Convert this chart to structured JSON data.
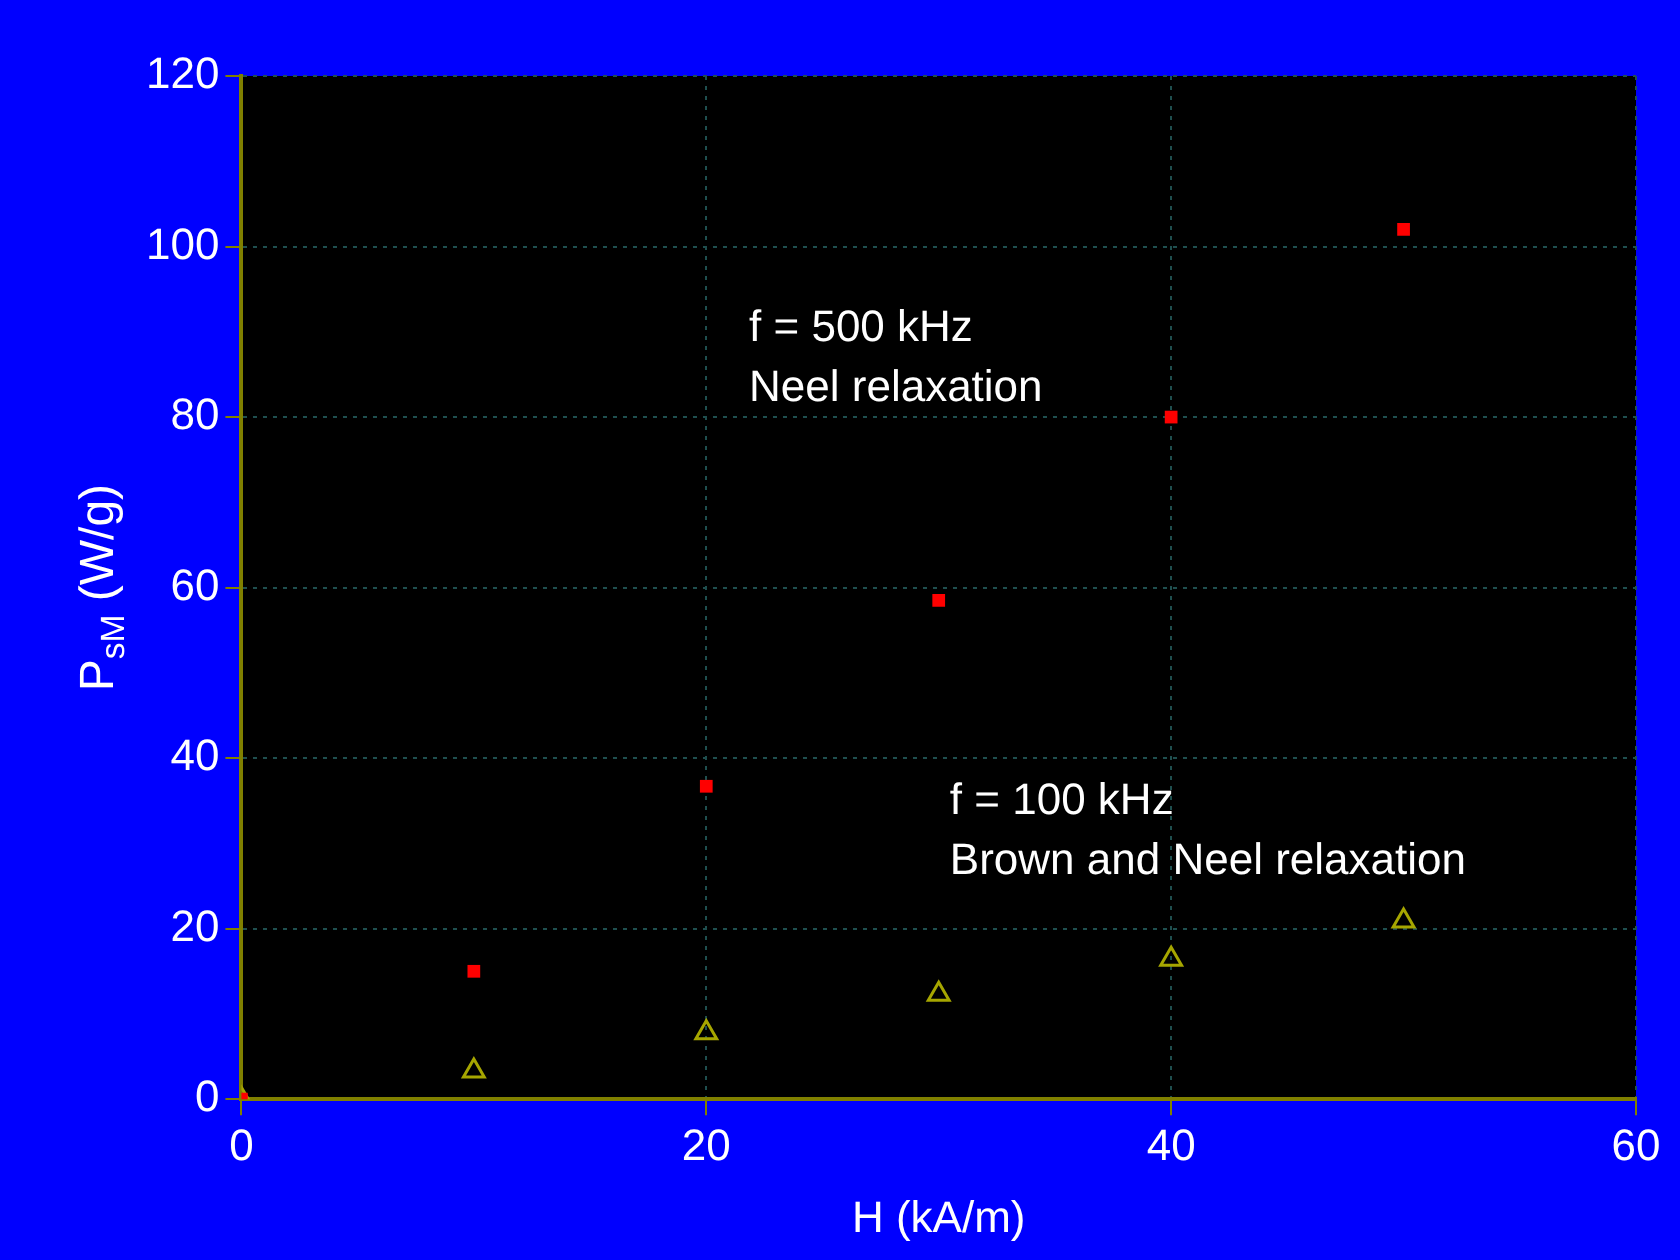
{
  "chart_data": {
    "type": "scatter",
    "xlabel": "H (kA/m)",
    "ylabel": "P$_{sM}$ (W/g)",
    "x": [
      0,
      10,
      20,
      30,
      40,
      50
    ],
    "series": [
      {
        "color": "#ff0000",
        "marker": "square",
        "values": [
          0,
          15,
          36.7,
          58.5,
          80,
          102
        ]
      },
      {
        "color": "#a6a600",
        "marker": "triangle",
        "values": [
          0,
          3.3,
          7.8,
          12.3,
          16.4,
          20.9
        ]
      }
    ],
    "xlim": [
      0,
      60
    ],
    "xticks": [
      0,
      20,
      40,
      60
    ],
    "ylim": [
      0,
      120
    ],
    "yticks": [
      0,
      20,
      40,
      60,
      80,
      100,
      120
    ],
    "grid": true,
    "legend": false,
    "annotations": [
      "f = 500 kHz\nNeel relaxation",
      "f = 100 kHz\nBrown and Neel relaxation"
    ]
  }
}
